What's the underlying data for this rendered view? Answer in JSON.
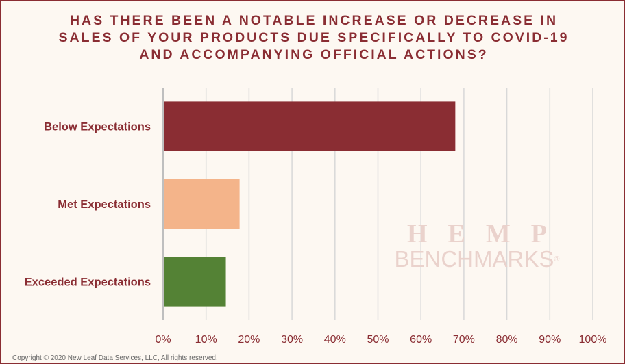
{
  "title": "HAS THERE BEEN A NOTABLE INCREASE OR DECREASE IN SALES OF YOUR PRODUCTS DUE SPECIFICALLY TO COVID-19 AND ACCOMPANYING OFFICIAL ACTIONS?",
  "watermark": {
    "line1": "HEMP",
    "line2": "BENCHMARKS",
    "mark": "®"
  },
  "copyright": "Copyright © 2020 New Leaf Data Services, LLC, All rights reserved.",
  "colors": {
    "title": "#8a2d33",
    "category_label": "#8a2d33",
    "tick_label": "#8a2d33",
    "grid": "#d8d8d8",
    "axis": "#bfbfbf"
  },
  "chart_data": {
    "type": "bar",
    "orientation": "horizontal",
    "categories": [
      "Below Expectations",
      "Met Expectations",
      "Exceeded Expectations"
    ],
    "values": [
      68,
      17.8,
      14.6
    ],
    "bar_colors": [
      "#8a2d33",
      "#f4b48a",
      "#548235"
    ],
    "xlim": [
      0,
      100
    ],
    "x_ticks": [
      0,
      10,
      20,
      30,
      40,
      50,
      60,
      70,
      80,
      90,
      100
    ],
    "x_tick_labels": [
      "0%",
      "10%",
      "20%",
      "30%",
      "40%",
      "50%",
      "60%",
      "70%",
      "80%",
      "90%",
      "100%"
    ],
    "grid": true,
    "legend": "none"
  }
}
